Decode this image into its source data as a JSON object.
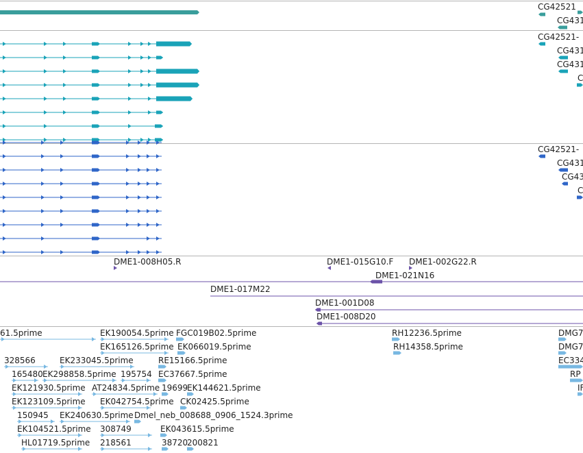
{
  "colors": {
    "gene": "#3a9e9c",
    "flybase": "#1aa3b8",
    "refseq": "#2f66c8",
    "clone": "#6b52a8",
    "est": "#78b8e2",
    "separator": "#b4b4b4",
    "text": "#1e1e1e"
  },
  "tracks": {
    "gene": {
      "labels": [
        "CG42521",
        "CG431"
      ]
    },
    "flybase": {
      "labels": [
        "CG42521-",
        "CG431",
        "CG431",
        "C"
      ]
    },
    "refseq": {
      "labels": [
        "CG42521-",
        "CG431",
        "CG43",
        "C"
      ]
    },
    "clone": {
      "labels": [
        "DME1-008H05.R",
        "DME1-015G10.F",
        "DME1-002G22.R",
        "DME1-021N16",
        "DME1-017M22",
        "DME1-001D08",
        "DME1-008D20"
      ]
    },
    "est": {
      "labels": [
        "61.5prime",
        "EK190054.5prime",
        "FGC019B02.5prime",
        "RH12236.5prime",
        "DMG7",
        "EK165126.5prime",
        "EK066019.5prime",
        "RH14358.5prime",
        "DMG7",
        "328566",
        "EK233045.5prime",
        "RE15166.5prime",
        "EC334",
        "165480",
        "EK298858.5prime",
        "195754",
        "EC37667.5prime",
        "RP",
        "EK121930.5prime",
        "AT24834.5prime",
        "19699",
        "EK144621.5prime",
        "IF",
        "EK123109.5prime",
        "EK042754.5prime",
        "CK02425.5prime",
        "150945",
        "EK240630.5prime",
        "Dmel_neb_008688_0906_1524.3prime",
        "EK104521.5prime",
        "308749",
        "EK043615.5prime",
        "HL01719.5prime",
        "218561",
        "38720",
        "200821"
      ]
    }
  }
}
